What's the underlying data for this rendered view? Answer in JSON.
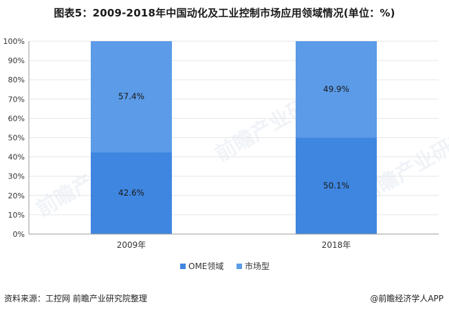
{
  "chart_title": "图表5：2009-2018年中国动化及工业控制市场应用领域情况(单位：%)",
  "footer": {
    "source": "资料来源：工控网 前瞻产业研究院整理",
    "brand": "@前瞻经济学人APP"
  },
  "watermark_text": "前瞻产业研究院",
  "colors": {
    "ome": "#3f86e0",
    "market": "#5b9be8",
    "axis": "#999999",
    "grid": "#e6e6e6"
  },
  "chart_data": {
    "type": "bar",
    "stacked": true,
    "categories": [
      "2009年",
      "2018年"
    ],
    "series": [
      {
        "name": "OME领域",
        "values": [
          42.6,
          50.1
        ],
        "labels": [
          "42.6%",
          "50.1%"
        ]
      },
      {
        "name": "市场型",
        "values": [
          57.4,
          49.9
        ],
        "labels": [
          "57.4%",
          "49.9%"
        ]
      }
    ],
    "ylim": [
      0,
      100
    ],
    "yticks": [
      "0%",
      "10%",
      "20%",
      "30%",
      "40%",
      "50%",
      "60%",
      "70%",
      "80%",
      "90%",
      "100%"
    ],
    "legend": "bottom"
  }
}
